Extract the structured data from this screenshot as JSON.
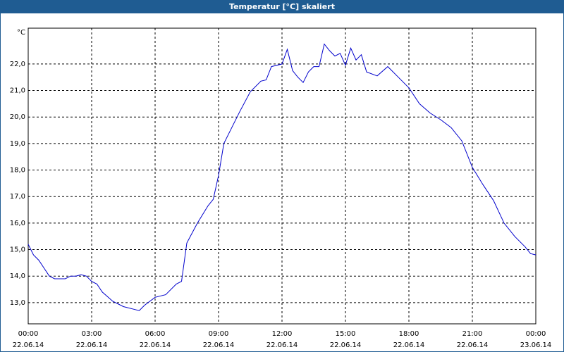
{
  "chart_data": {
    "type": "line",
    "title": "Temperatur [°C] skaliert",
    "y_unit": "°C",
    "x": [
      0,
      0.25,
      0.5,
      0.75,
      1,
      1.25,
      1.5,
      1.75,
      2,
      2.25,
      2.5,
      2.75,
      3,
      3.25,
      3.5,
      4,
      4.5,
      5,
      5.25,
      5.5,
      6,
      6.5,
      7,
      7.25,
      7.5,
      8,
      8.5,
      8.75,
      9,
      9.25,
      9.5,
      10,
      10.5,
      11,
      11.25,
      11.5,
      12,
      12.25,
      12.5,
      12.75,
      13,
      13.25,
      13.5,
      13.75,
      14,
      14.25,
      14.5,
      14.75,
      15,
      15.25,
      15.5,
      15.75,
      16,
      16.5,
      17,
      17.5,
      18,
      18.5,
      19,
      19.5,
      20,
      20.5,
      21,
      21.5,
      22,
      22.5,
      23,
      23.5,
      23.75,
      24
    ],
    "series": [
      {
        "name": "Temperatur",
        "color": "#0000cc",
        "values": [
          15.2,
          14.8,
          14.6,
          14.3,
          14.0,
          13.9,
          13.9,
          13.9,
          14.0,
          14.0,
          14.05,
          14.0,
          13.8,
          13.7,
          13.4,
          13.05,
          12.85,
          12.75,
          12.7,
          12.9,
          13.2,
          13.3,
          13.7,
          13.8,
          15.25,
          16.0,
          16.65,
          16.9,
          17.8,
          19.0,
          19.4,
          20.2,
          20.95,
          21.35,
          21.4,
          21.9,
          22.0,
          22.55,
          21.75,
          21.5,
          21.3,
          21.7,
          21.9,
          21.9,
          22.75,
          22.5,
          22.3,
          22.4,
          21.95,
          22.6,
          22.15,
          22.35,
          21.7,
          21.55,
          21.9,
          21.5,
          21.1,
          20.5,
          20.15,
          19.9,
          19.6,
          19.1,
          18.1,
          17.45,
          16.85,
          16.0,
          15.5,
          15.1,
          14.85,
          14.8
        ]
      }
    ],
    "xlim": [
      0,
      24
    ],
    "ylim": [
      12.2,
      23.35
    ],
    "yticks": [
      {
        "value": 13,
        "label": "13,0"
      },
      {
        "value": 14,
        "label": "14,0"
      },
      {
        "value": 15,
        "label": "15,0"
      },
      {
        "value": 16,
        "label": "16,0"
      },
      {
        "value": 17,
        "label": "17,0"
      },
      {
        "value": 18,
        "label": "18,0"
      },
      {
        "value": 19,
        "label": "19,0"
      },
      {
        "value": 20,
        "label": "20,0"
      },
      {
        "value": 21,
        "label": "21,0"
      },
      {
        "value": 22,
        "label": "22,0"
      }
    ],
    "xticks": [
      {
        "value": 0,
        "label": "00:00",
        "date": "22.06.14"
      },
      {
        "value": 3,
        "label": "03:00",
        "date": "22.06.14"
      },
      {
        "value": 6,
        "label": "06:00",
        "date": "22.06.14"
      },
      {
        "value": 9,
        "label": "09:00",
        "date": "22.06.14"
      },
      {
        "value": 12,
        "label": "12:00",
        "date": "22.06.14"
      },
      {
        "value": 15,
        "label": "15:00",
        "date": "22.06.14"
      },
      {
        "value": 18,
        "label": "18:00",
        "date": "22.06.14"
      },
      {
        "value": 21,
        "label": "21:00",
        "date": "22.06.14"
      },
      {
        "value": 24,
        "label": "00:00",
        "date": "23.06.14"
      }
    ],
    "grid": true
  }
}
